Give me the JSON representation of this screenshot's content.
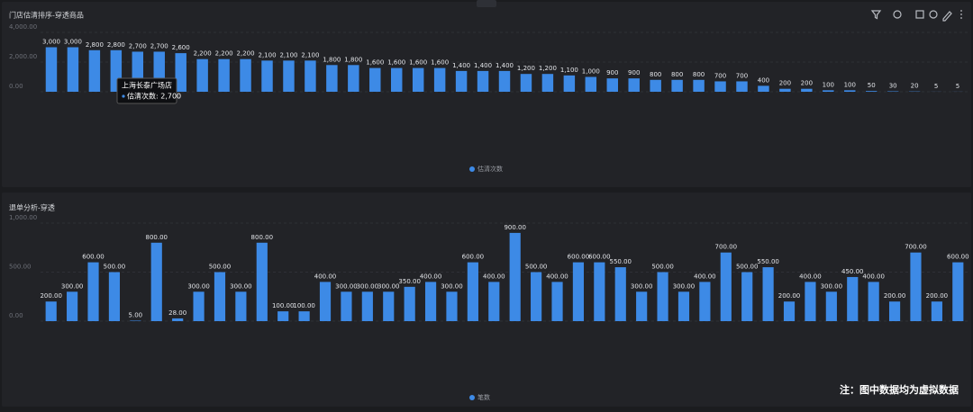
{
  "chart_data": [
    {
      "type": "bar",
      "title": "门店估清排序-穿透商品",
      "legend": "估清次数",
      "color": "#3d8ae6",
      "categories": [
        null,
        null,
        null,
        null,
        null,
        null,
        null,
        null,
        null,
        null,
        null,
        null,
        null,
        null,
        null,
        null,
        null,
        null,
        null,
        null,
        null,
        null,
        null,
        null,
        null,
        null,
        null,
        null,
        null,
        null,
        null,
        null,
        null,
        null,
        null,
        null,
        null,
        null,
        null,
        null,
        null,
        null,
        null
      ],
      "values": [
        3000,
        3000,
        2800,
        2800,
        2700,
        2700,
        2600,
        2200,
        2200,
        2200,
        2100,
        2100,
        2100,
        1800,
        1800,
        1600,
        1600,
        1600,
        1600,
        1400,
        1400,
        1400,
        1200,
        1200,
        1100,
        1000,
        900,
        900,
        800,
        800,
        800,
        700,
        700,
        400,
        200,
        200,
        100,
        100,
        50,
        30,
        20,
        5,
        5
      ],
      "value_labels": [
        "3,000",
        "3,000",
        "2,800",
        "2,800",
        "2,700",
        "2,700",
        "2,600",
        "2,200",
        "2,200",
        "2,200",
        "2,100",
        "2,100",
        "2,100",
        "1,800",
        "1,800",
        "1,600",
        "1,600",
        "1,600",
        "1,600",
        "1,400",
        "1,400",
        "1,400",
        "1,200",
        "1,200",
        "1,100",
        "1,000",
        "900",
        "900",
        "800",
        "800",
        "800",
        "700",
        "700",
        "400",
        "200",
        "200",
        "100",
        "100",
        "50",
        "30",
        "20",
        "5",
        "5"
      ],
      "ylim": [
        0,
        4000
      ],
      "yticks": [
        {
          "value": 0,
          "label": "0.00"
        },
        {
          "value": 2000,
          "label": "2,000.00"
        },
        {
          "value": 4000,
          "label": "4,000.00"
        }
      ],
      "grid": true,
      "tooltip": {
        "title": "上海长泰广场店",
        "text": "估清次数: 2,700"
      }
    },
    {
      "type": "bar",
      "title": "退单分析-穿透",
      "legend": "笔数",
      "color": "#3d8ae6",
      "categories": [
        null,
        null,
        null,
        null,
        null,
        null,
        null,
        null,
        null,
        null,
        null,
        null,
        null,
        null,
        null,
        null,
        null,
        null,
        null,
        null,
        null,
        null,
        null,
        null,
        null,
        null,
        null,
        null,
        null,
        null,
        null,
        null,
        null,
        null,
        null,
        null,
        null,
        null,
        null,
        null,
        null,
        null,
        null,
        null
      ],
      "values": [
        200,
        300,
        600,
        500,
        5,
        800,
        28,
        300,
        500,
        300,
        800,
        100,
        100,
        400,
        300,
        300,
        300,
        350,
        400,
        300,
        600,
        400,
        900,
        500,
        400,
        600,
        600,
        550,
        300,
        500,
        300,
        400,
        700,
        500,
        550,
        200,
        400,
        300,
        450,
        400,
        200,
        700,
        200,
        600
      ],
      "value_labels": [
        "200.00",
        "300.00",
        "600.00",
        "500.00",
        "5.00",
        "800.00",
        "28.00",
        "300.00",
        "500.00",
        "300.00",
        "800.00",
        "100.00",
        "100.00",
        "400.00",
        "300.00",
        "300.00",
        "300.00",
        "350.00",
        "400.00",
        "300.00",
        "600.00",
        "400.00",
        "900.00",
        "500.00",
        "400.00",
        "600.00",
        "600.00",
        "550.00",
        "300.00",
        "500.00",
        "300.00",
        "400.00",
        "700.00",
        "500.00",
        "550.00",
        "200.00",
        "400.00",
        "300.00",
        "450.00",
        "400.00",
        "200.00",
        "700.00",
        "200.00",
        "600.00"
      ],
      "ylim": [
        0,
        1000
      ],
      "yticks": [
        {
          "value": 0,
          "label": "0.00"
        },
        {
          "value": 500,
          "label": "500.00"
        },
        {
          "value": 1000,
          "label": "1,000.00"
        }
      ],
      "grid": true
    }
  ],
  "footnote": "注：图中数据均为虚拟数据"
}
